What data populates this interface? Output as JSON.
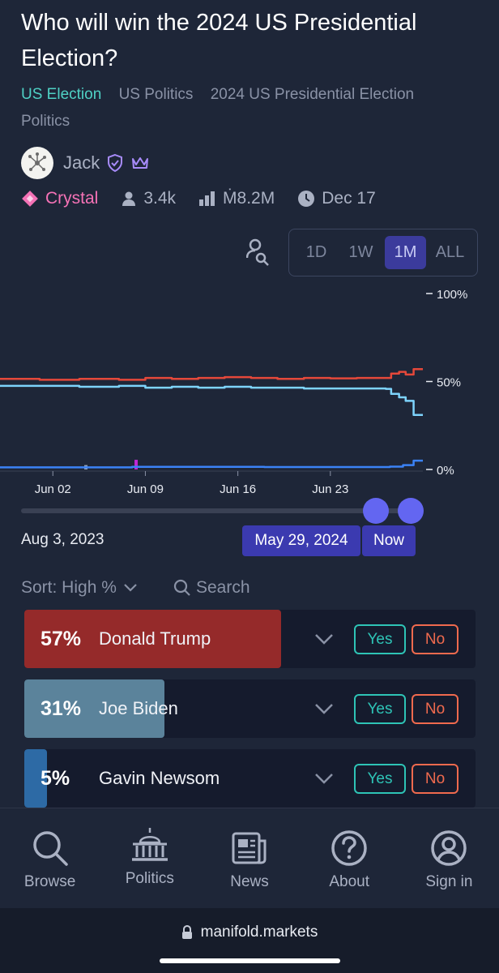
{
  "market": {
    "title": "Who will win the 2024 US Presidential Election?",
    "tags": [
      "US Election",
      "US Politics",
      "2024 US Presidential Election",
      "Politics"
    ]
  },
  "author": {
    "name": "Jack",
    "avatar_icon": "network-icon",
    "badges": [
      "shield-check-icon",
      "crown-icon"
    ]
  },
  "meta": {
    "tier": "Crystal",
    "traders": "3.4k",
    "volume": "Ṁ8.2M",
    "close_date": "Dec 17"
  },
  "time_range": {
    "options": [
      "1D",
      "1W",
      "1M",
      "ALL"
    ],
    "selected": "1M"
  },
  "chart_data": {
    "type": "line",
    "title": "",
    "xlabel": "",
    "ylabel": "",
    "x_tick_labels": [
      "Jun 02",
      "Jun 09",
      "Jun 16",
      "Jun 23"
    ],
    "y_tick_labels": [
      "100%",
      "50%",
      "0%"
    ],
    "ylim": [
      0,
      100
    ],
    "x_domain_days": [
      0,
      32
    ],
    "x_tick_days": [
      4,
      11,
      18,
      25
    ],
    "series": [
      {
        "name": "Donald Trump",
        "color": "#e5483a",
        "x": [
          0,
          3,
          6,
          9,
          11,
          13,
          15,
          17,
          19,
          21,
          23,
          25,
          27,
          29.2,
          29.6,
          30.2,
          30.7,
          31.3
        ],
        "values": [
          51.5,
          51,
          51.5,
          51,
          52,
          51.5,
          52,
          52.5,
          52,
          51.5,
          52,
          51.8,
          52,
          52,
          54.5,
          55.5,
          54,
          57
        ]
      },
      {
        "name": "Joe Biden",
        "color": "#7dd3fc",
        "x": [
          0,
          3,
          6,
          9,
          11,
          13,
          15,
          17,
          19,
          21,
          23,
          25,
          27,
          29.2,
          29.6,
          30.2,
          30.7,
          31.3
        ],
        "values": [
          47.5,
          47.5,
          47,
          47.5,
          46.5,
          47,
          46.5,
          47,
          46.5,
          46.5,
          46,
          46,
          46,
          45.8,
          43,
          41,
          39,
          31
        ]
      },
      {
        "name": "Gavin Newsom",
        "color": "#3b82f6",
        "x": [
          0,
          10,
          20,
          29.5,
          30.5,
          31.3
        ],
        "values": [
          1.2,
          1.5,
          1.4,
          1.6,
          2.5,
          5
        ]
      }
    ],
    "spikes": [
      {
        "x": 10.3,
        "value": 5.5,
        "color": "#c026d3"
      },
      {
        "x": 6.5,
        "value": 2.5,
        "color": "#94a3b8"
      }
    ]
  },
  "date_range": {
    "start": "Aug 3, 2023",
    "selected": "May 29, 2024",
    "end": "Now"
  },
  "controls": {
    "sort_label": "Sort: High %",
    "search_label": "Search"
  },
  "answers": [
    {
      "pct": "57%",
      "name": "Donald Trump",
      "prob": 0.57,
      "color": "#952a2a",
      "yes": "Yes",
      "no": "No"
    },
    {
      "pct": "31%",
      "name": "Joe Biden",
      "prob": 0.31,
      "color": "#5b839b",
      "yes": "Yes",
      "no": "No"
    },
    {
      "pct": "5%",
      "name": "Gavin Newsom",
      "prob": 0.05,
      "color": "#2d6aa5",
      "yes": "Yes",
      "no": "No"
    }
  ],
  "nav": [
    {
      "label": "Browse",
      "icon": "search-icon"
    },
    {
      "label": "Politics",
      "icon": "capitol-icon"
    },
    {
      "label": "News",
      "icon": "newspaper-icon"
    },
    {
      "label": "About",
      "icon": "question-circle-icon"
    },
    {
      "label": "Sign in",
      "icon": "user-circle-icon"
    }
  ],
  "browser": {
    "url": "manifold.markets"
  }
}
